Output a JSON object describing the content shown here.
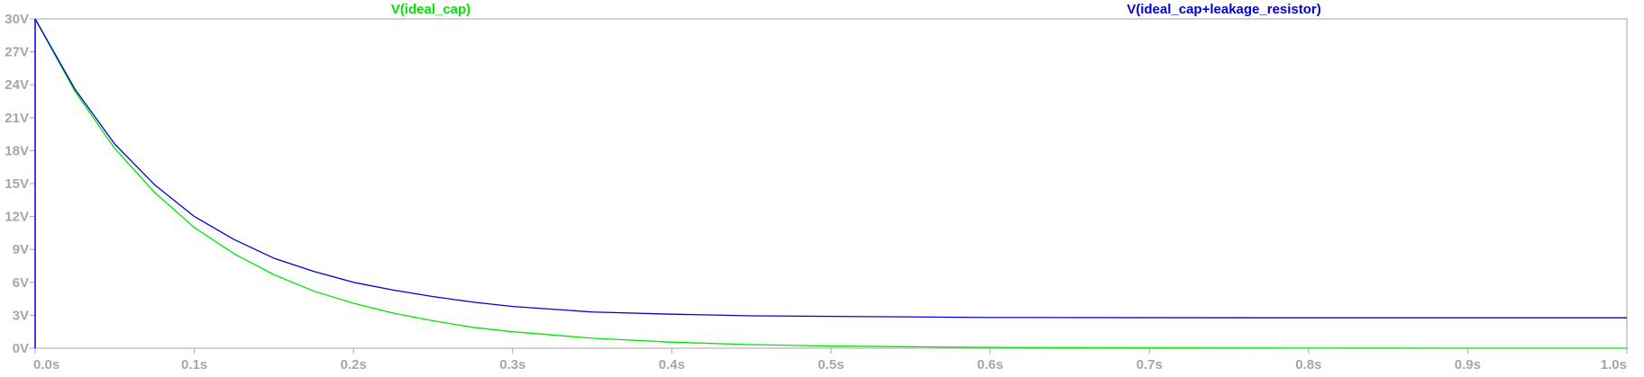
{
  "chart_data": {
    "type": "line",
    "title": "",
    "xlabel": "",
    "ylabel": "",
    "xlim": [
      0,
      1.0
    ],
    "ylim": [
      0,
      30
    ],
    "grid": false,
    "legend_position": "top",
    "x_ticks": [
      {
        "value": 0.0,
        "label": "0.0s"
      },
      {
        "value": 0.1,
        "label": "0.1s"
      },
      {
        "value": 0.2,
        "label": "0.2s"
      },
      {
        "value": 0.3,
        "label": "0.3s"
      },
      {
        "value": 0.4,
        "label": "0.4s"
      },
      {
        "value": 0.5,
        "label": "0.5s"
      },
      {
        "value": 0.6,
        "label": "0.6s"
      },
      {
        "value": 0.7,
        "label": "0.7s"
      },
      {
        "value": 0.8,
        "label": "0.8s"
      },
      {
        "value": 0.9,
        "label": "0.9s"
      },
      {
        "value": 1.0,
        "label": "1.0s"
      }
    ],
    "y_ticks": [
      {
        "value": 0,
        "label": "0V"
      },
      {
        "value": 3,
        "label": "3V"
      },
      {
        "value": 6,
        "label": "6V"
      },
      {
        "value": 9,
        "label": "9V"
      },
      {
        "value": 12,
        "label": "12V"
      },
      {
        "value": 15,
        "label": "15V"
      },
      {
        "value": 18,
        "label": "18V"
      },
      {
        "value": 21,
        "label": "21V"
      },
      {
        "value": 24,
        "label": "24V"
      },
      {
        "value": 27,
        "label": "27V"
      },
      {
        "value": 30,
        "label": "30V"
      }
    ],
    "series": [
      {
        "name": "V(ideal_cap)",
        "color": "#00e600",
        "x": [
          0,
          0.025,
          0.05,
          0.075,
          0.1,
          0.125,
          0.15,
          0.175,
          0.2,
          0.225,
          0.25,
          0.275,
          0.3,
          0.35,
          0.4,
          0.45,
          0.5,
          0.6,
          0.7,
          0.8,
          0.9,
          1.0
        ],
        "y": [
          30,
          23.4,
          18.2,
          14.2,
          11.0,
          8.6,
          6.7,
          5.2,
          4.1,
          3.2,
          2.5,
          1.9,
          1.5,
          0.91,
          0.55,
          0.33,
          0.2,
          0.07,
          0.03,
          0.01,
          0.0,
          0.0
        ]
      },
      {
        "name": "V(ideal_cap+leakage_resistor)",
        "color": "#0000d9",
        "x": [
          0,
          0.025,
          0.05,
          0.075,
          0.1,
          0.125,
          0.15,
          0.175,
          0.2,
          0.225,
          0.25,
          0.275,
          0.3,
          0.35,
          0.4,
          0.45,
          0.5,
          0.6,
          0.7,
          0.8,
          0.9,
          1.0
        ],
        "y": [
          30,
          23.6,
          18.6,
          14.9,
          12.0,
          9.9,
          8.2,
          7.0,
          6.0,
          5.3,
          4.7,
          4.2,
          3.8,
          3.3,
          3.1,
          2.95,
          2.9,
          2.8,
          2.78,
          2.77,
          2.77,
          2.77
        ]
      }
    ]
  }
}
